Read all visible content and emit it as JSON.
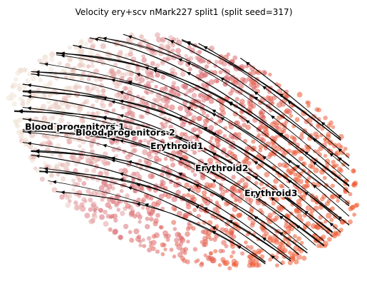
{
  "chart_data": {
    "type": "scatter",
    "title": "Velocity ery+scv nMark227 split1 (split seed=317)",
    "xlabel": "",
    "ylabel": "",
    "axes_visible": false,
    "grid": false,
    "legend": "none",
    "colormap": "light beige to red-orange (cell state / pseudotime)",
    "colors": {
      "low": "#efe3d6",
      "mid": "#d86a74",
      "high": "#ef5a30",
      "streamline": "#000000",
      "label_outline": "#ffffff"
    },
    "overlay": "velocity streamlines with arrowheads",
    "clusters": [
      {
        "name": "Blood progenitors 1"
      },
      {
        "name": "Blood progenitors 2"
      },
      {
        "name": "Erythroid1"
      },
      {
        "name": "Erythroid2"
      },
      {
        "name": "Erythroid3"
      }
    ]
  }
}
